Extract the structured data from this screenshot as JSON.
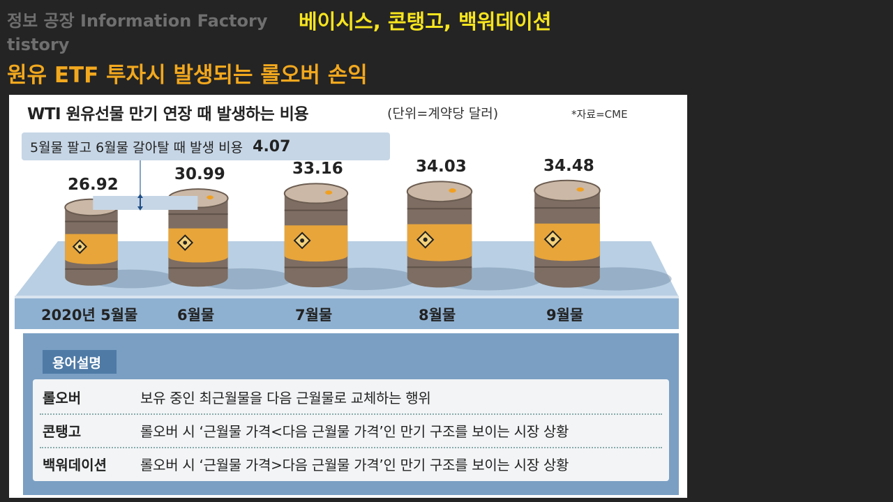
{
  "header": {
    "brand_line1": "정보 공장 Information Factory",
    "brand_line2": "tistory",
    "topic": "베이시스, 콘탱고, 백워데이션",
    "title": "원유 ETF 투자시 발생되는 롤오버 손익"
  },
  "chart": {
    "title": "WTI 원유선물 만기 연장 때 발생하는 비용",
    "unit": "(단위=계약당 달러)",
    "source": "*자료=CME",
    "callout_text": "5월물 팔고 6월물 갈아탈 때 발생 비용",
    "callout_value": "4.07"
  },
  "chart_data": {
    "type": "bar",
    "title": "WTI 원유선물 만기 연장 때 발생하는 비용",
    "unit": "(단위=계약당 달러)",
    "categories": [
      "2020년 5월물",
      "6월물",
      "7월물",
      "8월물",
      "9월물"
    ],
    "values": [
      26.92,
      30.99,
      33.16,
      34.03,
      34.48
    ],
    "value_labels": [
      "26.92",
      "30.99",
      "33.16",
      "34.03",
      "34.48"
    ],
    "annotation": {
      "text": "5월물 팔고 6월물 갈아탈 때 발생 비용",
      "value": "4.07"
    }
  },
  "glossary": {
    "heading": "용어설명",
    "rows": [
      {
        "term": "롤오버",
        "definition": "보유 중인 최근월물을 다음 근월물로 교체하는 행위"
      },
      {
        "term": "콘탱고",
        "definition": "롤오버 시 ‘근월물 가격<다음 근월물 가격’인 만기 구조를 보이는 시장 상황"
      },
      {
        "term": "백워데이션",
        "definition": "롤오버 시 ‘근월물 가격>다음 근월물 가격’인 만기 구조를 보이는 시장 상황"
      }
    ]
  },
  "colors": {
    "background": "#242424",
    "brand_text": "#6f6f6f",
    "topic_text": "#f7e51e",
    "title_text": "#f2a81e",
    "platform_top": "#b9cfe3",
    "platform_front": "#8fb1d1",
    "barrel_body": "#7d6d62",
    "barrel_band": "#e8a53a",
    "legend_box": "#7a9fc3",
    "legend_tab": "#4f7aa6"
  }
}
